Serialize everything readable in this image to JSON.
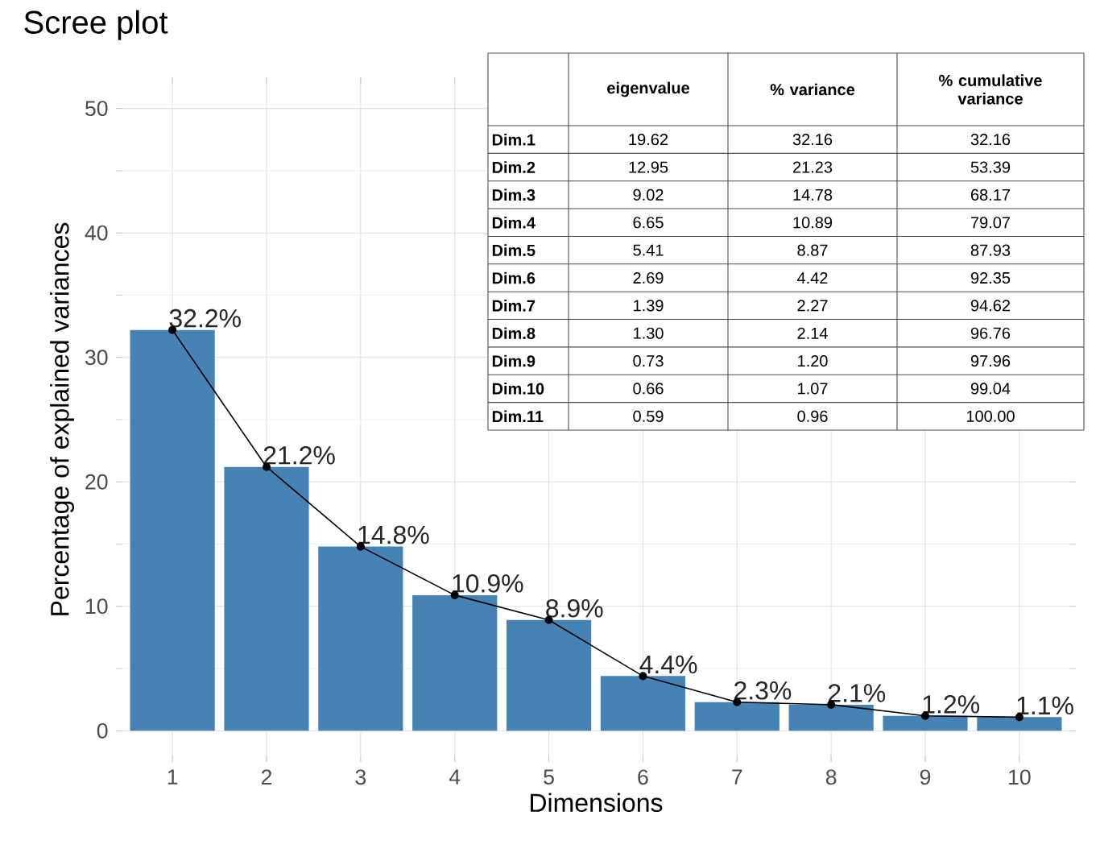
{
  "chart_data": [
    {
      "type": "bar",
      "title": "Scree plot",
      "xlabel": "Dimensions",
      "ylabel": "Percentage of explained variances",
      "categories": [
        "1",
        "2",
        "3",
        "4",
        "5",
        "6",
        "7",
        "8",
        "9",
        "10"
      ],
      "series": [
        {
          "type": "bar",
          "color": "#4682b4",
          "values": [
            32.2,
            21.2,
            14.8,
            10.9,
            8.9,
            4.4,
            2.3,
            2.1,
            1.2,
            1.1
          ],
          "value_labels": [
            "32.2%",
            "21.2%",
            "14.8%",
            "10.9%",
            "8.9%",
            "4.4%",
            "2.3%",
            "2.1%",
            "1.2%",
            "1.1%"
          ]
        },
        {
          "type": "line",
          "color": "#000000",
          "marker": "circle",
          "line_style": "solid",
          "values": [
            32.2,
            21.2,
            14.8,
            10.9,
            8.9,
            4.4,
            2.3,
            2.1,
            1.2,
            1.1
          ]
        }
      ],
      "ylim": [
        -2.5,
        52.5
      ],
      "yticks": [
        0,
        10,
        20,
        30,
        40,
        50
      ],
      "grid": true
    },
    {
      "type": "other",
      "categories": [
        "Dim.1",
        "Dim.2",
        "Dim.3",
        "Dim.4",
        "Dim.5",
        "Dim.6",
        "Dim.7",
        "Dim.8",
        "Dim.9",
        "Dim.10",
        "Dim.11"
      ],
      "series": [
        {
          "name": "eigenvalue",
          "values": [
            19.62,
            12.95,
            9.02,
            6.65,
            5.41,
            2.69,
            1.39,
            1.3,
            0.73,
            0.66,
            0.59
          ],
          "value_labels": [
            "19.62",
            "12.95",
            "9.02",
            "6.65",
            "5.41",
            "2.69",
            "1.39",
            "1.30",
            "0.73",
            "0.66",
            "0.59"
          ]
        },
        {
          "name": "% variance",
          "values": [
            32.16,
            21.23,
            14.78,
            10.89,
            8.87,
            4.42,
            2.27,
            2.14,
            1.2,
            1.07,
            0.96
          ],
          "value_labels": [
            "32.16",
            "21.23",
            "14.78",
            "10.89",
            "8.87",
            "4.42",
            "2.27",
            "2.14",
            "1.20",
            "1.07",
            "0.96"
          ]
        },
        {
          "name": "% cumulative variance",
          "values": [
            32.16,
            53.39,
            68.17,
            79.07,
            87.93,
            92.35,
            94.62,
            96.76,
            97.96,
            99.04,
            100.0
          ],
          "value_labels": [
            "32.16",
            "53.39",
            "68.17",
            "79.07",
            "87.93",
            "92.35",
            "94.62",
            "96.76",
            "97.96",
            "99.04",
            "100.00"
          ]
        }
      ]
    }
  ]
}
